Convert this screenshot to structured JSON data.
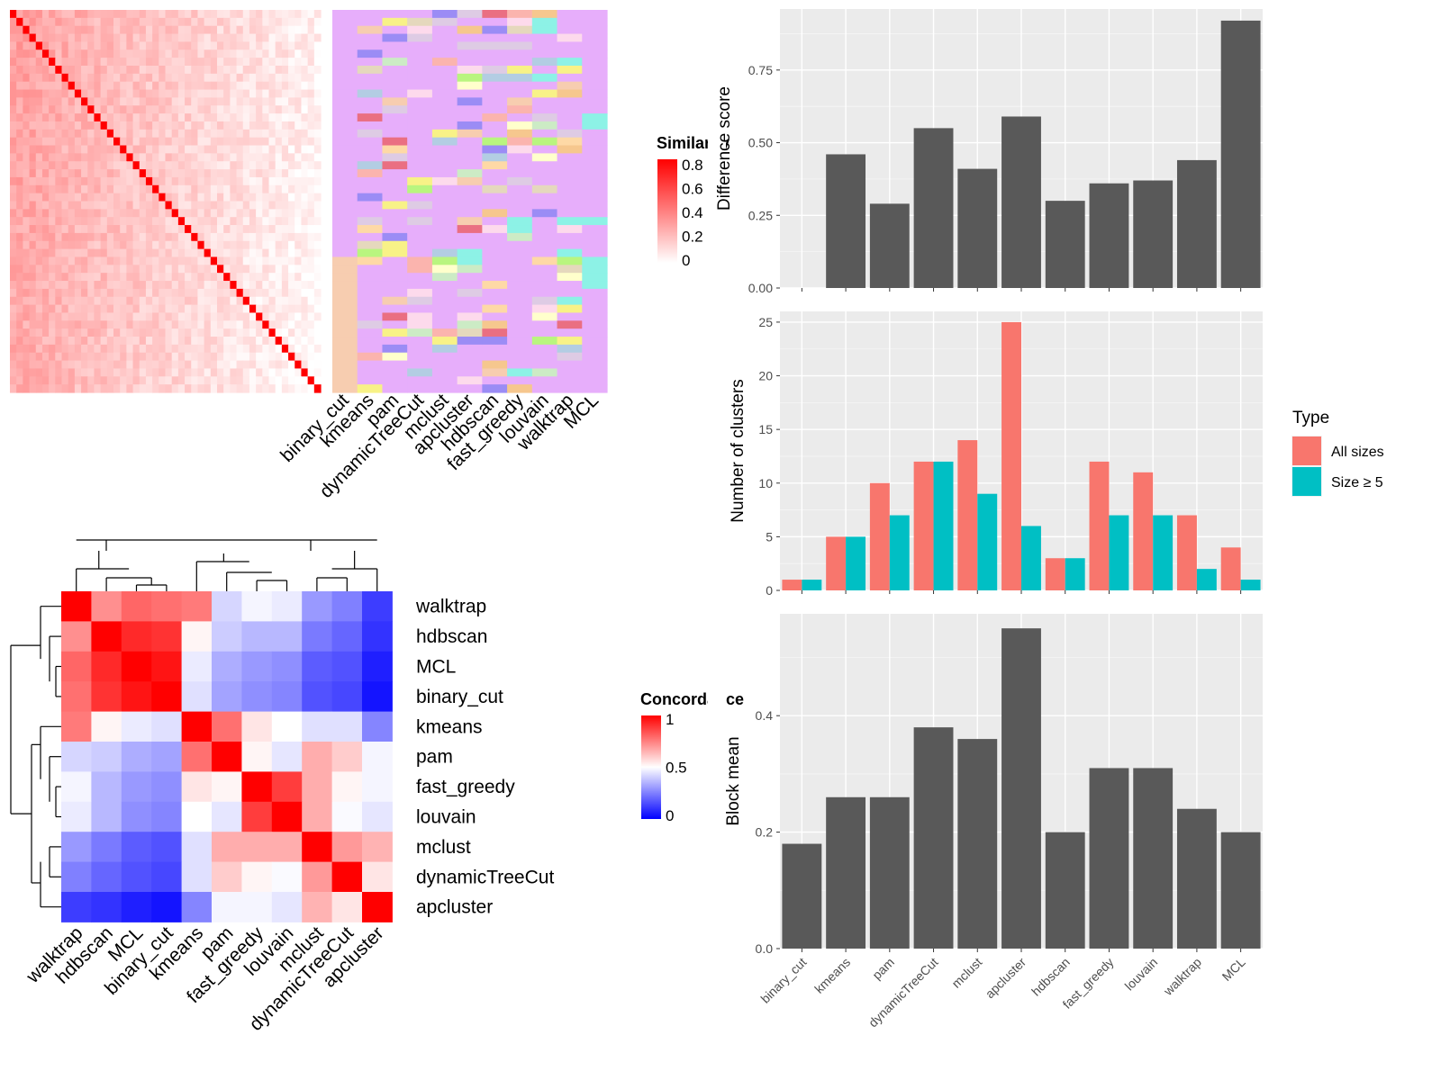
{
  "chart_data": [
    {
      "type": "heatmap",
      "panel": "similarity-heatmap",
      "legend_title": "Similarity",
      "legend_ticks": [
        "0.8",
        "0.6",
        "0.4",
        "0.2",
        "0"
      ],
      "colorscale": {
        "low": "#ffffff",
        "high": "#ff0000"
      },
      "annotation_columns": [
        "binary_cut",
        "kmeans",
        "pam",
        "dynamicTreeCut",
        "mclust",
        "apcluster",
        "hdbscan",
        "fast_greedy",
        "louvain",
        "walktrap",
        "MCL"
      ],
      "annotation_background": "#e7aefb"
    },
    {
      "type": "heatmap",
      "panel": "concordance-heatmap",
      "legend_title": "Concordance",
      "legend_ticks": [
        "1",
        "0.5",
        "0"
      ],
      "colorscale": {
        "low": "#0000ff",
        "mid": "#ffffff",
        "high": "#ff0000"
      },
      "rows": [
        "walktrap",
        "hdbscan",
        "MCL",
        "binary_cut",
        "kmeans",
        "pam",
        "fast_greedy",
        "louvain",
        "mclust",
        "dynamicTreeCut",
        "apcluster"
      ],
      "cols": [
        "walktrap",
        "hdbscan",
        "MCL",
        "binary_cut",
        "kmeans",
        "pam",
        "fast_greedy",
        "louvain",
        "mclust",
        "dynamicTreeCut",
        "apcluster"
      ],
      "values": [
        [
          1.0,
          0.72,
          0.8,
          0.78,
          0.76,
          0.42,
          0.48,
          0.46,
          0.3,
          0.25,
          0.12
        ],
        [
          0.72,
          1.0,
          0.92,
          0.9,
          0.52,
          0.4,
          0.36,
          0.36,
          0.24,
          0.2,
          0.1
        ],
        [
          0.8,
          0.92,
          1.0,
          0.96,
          0.46,
          0.34,
          0.3,
          0.28,
          0.18,
          0.16,
          0.06
        ],
        [
          0.78,
          0.9,
          0.96,
          1.0,
          0.44,
          0.32,
          0.28,
          0.26,
          0.16,
          0.14,
          0.04
        ],
        [
          0.76,
          0.52,
          0.46,
          0.44,
          1.0,
          0.78,
          0.55,
          0.5,
          0.44,
          0.44,
          0.26
        ],
        [
          0.42,
          0.4,
          0.34,
          0.32,
          0.78,
          1.0,
          0.52,
          0.45,
          0.66,
          0.6,
          0.48
        ],
        [
          0.48,
          0.36,
          0.3,
          0.28,
          0.55,
          0.52,
          1.0,
          0.88,
          0.66,
          0.52,
          0.48
        ],
        [
          0.46,
          0.36,
          0.28,
          0.26,
          0.5,
          0.45,
          0.88,
          1.0,
          0.66,
          0.49,
          0.45
        ],
        [
          0.3,
          0.24,
          0.18,
          0.16,
          0.44,
          0.66,
          0.66,
          0.66,
          1.0,
          0.7,
          0.65
        ],
        [
          0.25,
          0.2,
          0.16,
          0.14,
          0.44,
          0.6,
          0.52,
          0.49,
          0.7,
          1.0,
          0.55
        ],
        [
          0.12,
          0.1,
          0.06,
          0.04,
          0.26,
          0.48,
          0.48,
          0.45,
          0.65,
          0.55,
          1.0
        ]
      ]
    },
    {
      "type": "bar",
      "panel": "difference-score",
      "categories": [
        "binary_cut",
        "kmeans",
        "pam",
        "dynamicTreeCut",
        "mclust",
        "apcluster",
        "hdbscan",
        "fast_greedy",
        "louvain",
        "walktrap",
        "MCL"
      ],
      "values": [
        0,
        0.46,
        0.29,
        0.55,
        0.41,
        0.59,
        0.3,
        0.36,
        0.37,
        0.44,
        0.92
      ],
      "ylabel": "Difference score",
      "ylim": [
        0,
        0.96
      ],
      "yticks": [
        0,
        0.25,
        0.5,
        0.75
      ],
      "ytick_labels": [
        "0.00",
        "0.25",
        "0.50",
        "0.75"
      ]
    },
    {
      "type": "bar",
      "panel": "number-of-clusters",
      "categories": [
        "binary_cut",
        "kmeans",
        "pam",
        "dynamicTreeCut",
        "mclust",
        "apcluster",
        "hdbscan",
        "fast_greedy",
        "louvain",
        "walktrap",
        "MCL"
      ],
      "series": [
        {
          "name": "All sizes",
          "color": "#f8766d",
          "values": [
            1,
            5,
            10,
            12,
            14,
            25,
            3,
            12,
            11,
            7,
            4
          ]
        },
        {
          "name": "Size ≥ 5",
          "color": "#00bfc4",
          "values": [
            1,
            5,
            7,
            12,
            9,
            6,
            3,
            7,
            7,
            2,
            1
          ]
        }
      ],
      "ylabel": "Number of clusters",
      "ylim": [
        0,
        26
      ],
      "yticks": [
        0,
        5,
        10,
        15,
        20,
        25
      ],
      "ytick_labels": [
        "0",
        "5",
        "10",
        "15",
        "20",
        "25"
      ],
      "legend_title": "Type",
      "legend_position": "right"
    },
    {
      "type": "bar",
      "panel": "block-mean",
      "categories": [
        "binary_cut",
        "kmeans",
        "pam",
        "dynamicTreeCut",
        "mclust",
        "apcluster",
        "hdbscan",
        "fast_greedy",
        "louvain",
        "walktrap",
        "MCL"
      ],
      "values": [
        0.18,
        0.26,
        0.26,
        0.38,
        0.36,
        0.55,
        0.2,
        0.31,
        0.31,
        0.24,
        0.2
      ],
      "ylabel": "Block mean",
      "ylim": [
        0,
        0.575
      ],
      "yticks": [
        0,
        0.2,
        0.4
      ],
      "ytick_labels": [
        "0.0",
        "0.2",
        "0.4"
      ]
    }
  ]
}
